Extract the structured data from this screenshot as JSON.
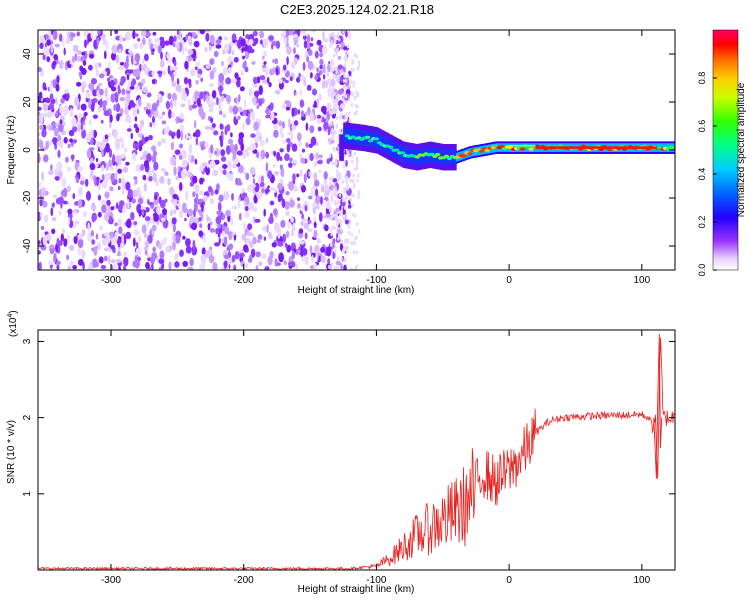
{
  "title": "C2E3.2025.124.02.21.R18",
  "chart_data": [
    {
      "type": "heatmap",
      "xlabel": "Height of straight line (km)",
      "ylabel": "Frequency (Hz)",
      "xlim": [
        -355,
        125
      ],
      "ylim": [
        -50,
        50
      ],
      "x_ticks": [
        -300,
        -200,
        -100,
        0,
        100
      ],
      "y_ticks": [
        -40,
        -20,
        0,
        20,
        40
      ],
      "colorbar": {
        "label": "Normalized spectral amplitude",
        "range": [
          0,
          1
        ],
        "ticks": [
          0.0,
          0.2,
          0.4,
          0.6,
          0.8
        ],
        "colors": [
          "#ffffff",
          "#cc99ff",
          "#8a2be2",
          "#0000ff",
          "#00bfff",
          "#00ff7f",
          "#7fff00",
          "#ffff00",
          "#ff7f00",
          "#ff0000",
          "#ff1493"
        ]
      },
      "noise_region_x": [
        -355,
        -120
      ],
      "ridge": [
        {
          "x": -125,
          "y": 6
        },
        {
          "x": -110,
          "y": 5
        },
        {
          "x": -100,
          "y": 4
        },
        {
          "x": -90,
          "y": 1
        },
        {
          "x": -80,
          "y": -2
        },
        {
          "x": -70,
          "y": -3
        },
        {
          "x": -60,
          "y": -2
        },
        {
          "x": -50,
          "y": -3
        },
        {
          "x": -40,
          "y": -3
        },
        {
          "x": -30,
          "y": -1
        },
        {
          "x": -20,
          "y": 0
        },
        {
          "x": -10,
          "y": 1
        },
        {
          "x": 0,
          "y": 1
        },
        {
          "x": 20,
          "y": 1
        },
        {
          "x": 50,
          "y": 1
        },
        {
          "x": 80,
          "y": 1
        },
        {
          "x": 110,
          "y": 1
        },
        {
          "x": 125,
          "y": 1
        }
      ]
    },
    {
      "type": "line",
      "xlabel": "Height of straight line (km)",
      "ylabel": "SNR (10 * v/v)",
      "y_multiplier": "(x10",
      "y_exponent": "4",
      "xlim": [
        -355,
        125
      ],
      "ylim": [
        0,
        3.15
      ],
      "x_ticks": [
        -300,
        -200,
        -100,
        0,
        100
      ],
      "y_ticks": [
        1,
        2,
        3
      ],
      "series": [
        {
          "color": "#e8201e",
          "x": [
            -355,
            -300,
            -200,
            -120,
            -100,
            -90,
            -80,
            -70,
            -60,
            -50,
            -40,
            -30,
            -25,
            -20,
            -10,
            0,
            10,
            20,
            30,
            40,
            60,
            80,
            100,
            105,
            108,
            110,
            112,
            114,
            116,
            120,
            125
          ],
          "y": [
            0.02,
            0.02,
            0.02,
            0.02,
            0.05,
            0.15,
            0.3,
            0.45,
            0.55,
            0.65,
            0.75,
            0.9,
            1.1,
            1.3,
            1.15,
            1.3,
            1.5,
            1.8,
            1.95,
            2.0,
            2.02,
            2.03,
            2.04,
            2.0,
            1.9,
            2.05,
            1.2,
            3.1,
            2.0,
            2.0,
            2.0
          ]
        }
      ]
    }
  ]
}
